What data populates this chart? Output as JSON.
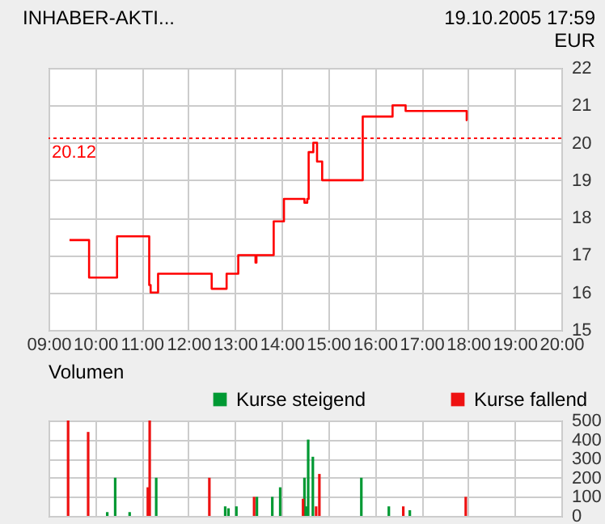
{
  "chart_data": [
    {
      "type": "step",
      "title": "INHABER-AKTI...",
      "annotations": [
        "19.10.2005 17:59",
        "EUR"
      ],
      "x": [
        9.45,
        9.87,
        10.47,
        11.16,
        11.19,
        11.35,
        12.5,
        12.82,
        13.07,
        13.44,
        13.46,
        13.83,
        14.05,
        14.49,
        14.55,
        14.58,
        14.68,
        14.76,
        14.87,
        15.74,
        16.38,
        16.66,
        17.97,
        17.98
      ],
      "series": [
        {
          "color": "#ff0000",
          "values": [
            17.4,
            16.4,
            17.5,
            16.2,
            16.0,
            16.5,
            16.1,
            16.5,
            17.0,
            16.8,
            17.0,
            17.9,
            18.5,
            18.4,
            18.5,
            19.75,
            20.0,
            19.5,
            19.0,
            20.7,
            21.0,
            20.85,
            20.6,
            20.6
          ]
        }
      ],
      "xlim": [
        9,
        20
      ],
      "xticks": [
        {
          "value": 9,
          "label": "09:00"
        },
        {
          "value": 10,
          "label": "10:00"
        },
        {
          "value": 11,
          "label": "11:00"
        },
        {
          "value": 12,
          "label": "12:00"
        },
        {
          "value": 13,
          "label": "13:00"
        },
        {
          "value": 14,
          "label": "14:00"
        },
        {
          "value": 15,
          "label": "15:00"
        },
        {
          "value": 16,
          "label": "16:00"
        },
        {
          "value": 17,
          "label": "17:00"
        },
        {
          "value": 18,
          "label": "18:00"
        },
        {
          "value": 19,
          "label": "19:00"
        },
        {
          "value": 20,
          "label": "20:00"
        }
      ],
      "ylim": [
        15,
        22
      ],
      "yticks": [
        15,
        16,
        17,
        18,
        19,
        20,
        21,
        22
      ],
      "grid": true,
      "ref_lines": [
        {
          "axis": "y",
          "value": 20.12,
          "label": "20.12",
          "color": "#ff0000",
          "line_style": "dotted"
        }
      ]
    },
    {
      "type": "bar",
      "title": "Volumen",
      "legend": "top",
      "series": [
        {
          "name": "Kurse steigend",
          "color": "#009933",
          "x": [
            10.26,
            10.43,
            10.74,
            11.31,
            12.79,
            12.86,
            13.03,
            13.47,
            13.8,
            13.97,
            14.49,
            14.53,
            14.57,
            14.67,
            15.71,
            16.3,
            16.75
          ],
          "values": [
            20,
            200,
            20,
            200,
            50,
            40,
            50,
            100,
            100,
            150,
            200,
            50,
            400,
            310,
            200,
            50,
            30
          ]
        },
        {
          "name": "Kurse fallend",
          "color": "#ee1111",
          "x": [
            9.42,
            9.85,
            11.13,
            11.17,
            12.45,
            13.41,
            14.46,
            14.74,
            14.81,
            16.61,
            17.95
          ],
          "values": [
            500,
            440,
            150,
            500,
            200,
            100,
            90,
            50,
            220,
            50,
            100
          ]
        }
      ],
      "xlim": [
        9,
        20
      ],
      "xticks": [
        9,
        10,
        11,
        12,
        13,
        14,
        15,
        16,
        17,
        18,
        19,
        20
      ],
      "ylim": [
        0,
        500
      ],
      "yticks": [
        0,
        100,
        200,
        300,
        400,
        500
      ],
      "grid": true,
      "tick_labels": "y"
    }
  ]
}
